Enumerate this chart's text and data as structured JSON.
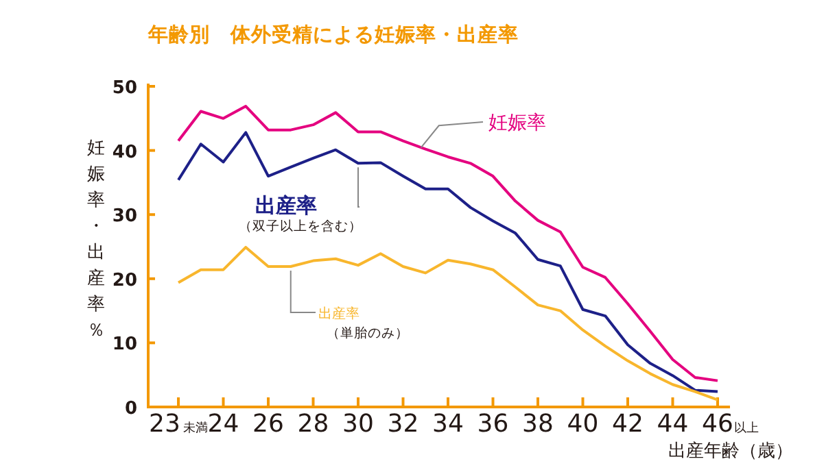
{
  "chart_data": {
    "type": "line",
    "title": "年齢別　体外受精による妊娠率・出産率",
    "xlabel": "出産年齢（歳）",
    "ylabel": "妊娠率・出産率％",
    "categories": [
      "23未満",
      null,
      "24",
      null,
      "26",
      null,
      "28",
      null,
      "30",
      null,
      "32",
      null,
      "34",
      null,
      "36",
      null,
      "38",
      null,
      "40",
      null,
      "42",
      null,
      "44",
      null,
      "46以上"
    ],
    "ylim": [
      0,
      50
    ],
    "yticks": [
      0,
      10,
      20,
      30,
      40,
      50
    ],
    "grid": false,
    "marker": "none",
    "line_style": "solid",
    "series": [
      {
        "name": "妊娠率",
        "color": "#e4007f",
        "values": [
          41.5,
          46.1,
          45.0,
          46.9,
          43.2,
          43.2,
          44.0,
          45.9,
          42.9,
          42.9,
          41.5,
          40.2,
          39.0,
          38.0,
          36.0,
          32.1,
          29.1,
          27.3,
          21.8,
          20.2,
          16.1,
          11.8,
          7.4,
          4.6,
          4.1
        ]
      },
      {
        "name": "出産率",
        "color": "#1d2088",
        "values": [
          35.4,
          41.0,
          38.2,
          42.8,
          36.0,
          37.4,
          38.8,
          40.1,
          38.0,
          38.1,
          36.0,
          34.0,
          34.0,
          31.1,
          29.0,
          27.1,
          23.0,
          22.0,
          15.2,
          14.2,
          9.7,
          6.8,
          4.9,
          2.6,
          2.4
        ]
      },
      {
        "name": "出産率",
        "color": "#f8b62d",
        "values": [
          19.4,
          21.4,
          21.4,
          24.9,
          21.9,
          21.9,
          22.8,
          23.1,
          22.1,
          23.9,
          21.9,
          20.9,
          22.9,
          22.3,
          21.4,
          18.7,
          15.9,
          15.0,
          12.0,
          9.5,
          7.2,
          5.2,
          3.5,
          2.4,
          1.1
        ]
      }
    ],
    "annotations": [
      "（双子以上を含む）",
      "（単胎のみ）"
    ]
  }
}
